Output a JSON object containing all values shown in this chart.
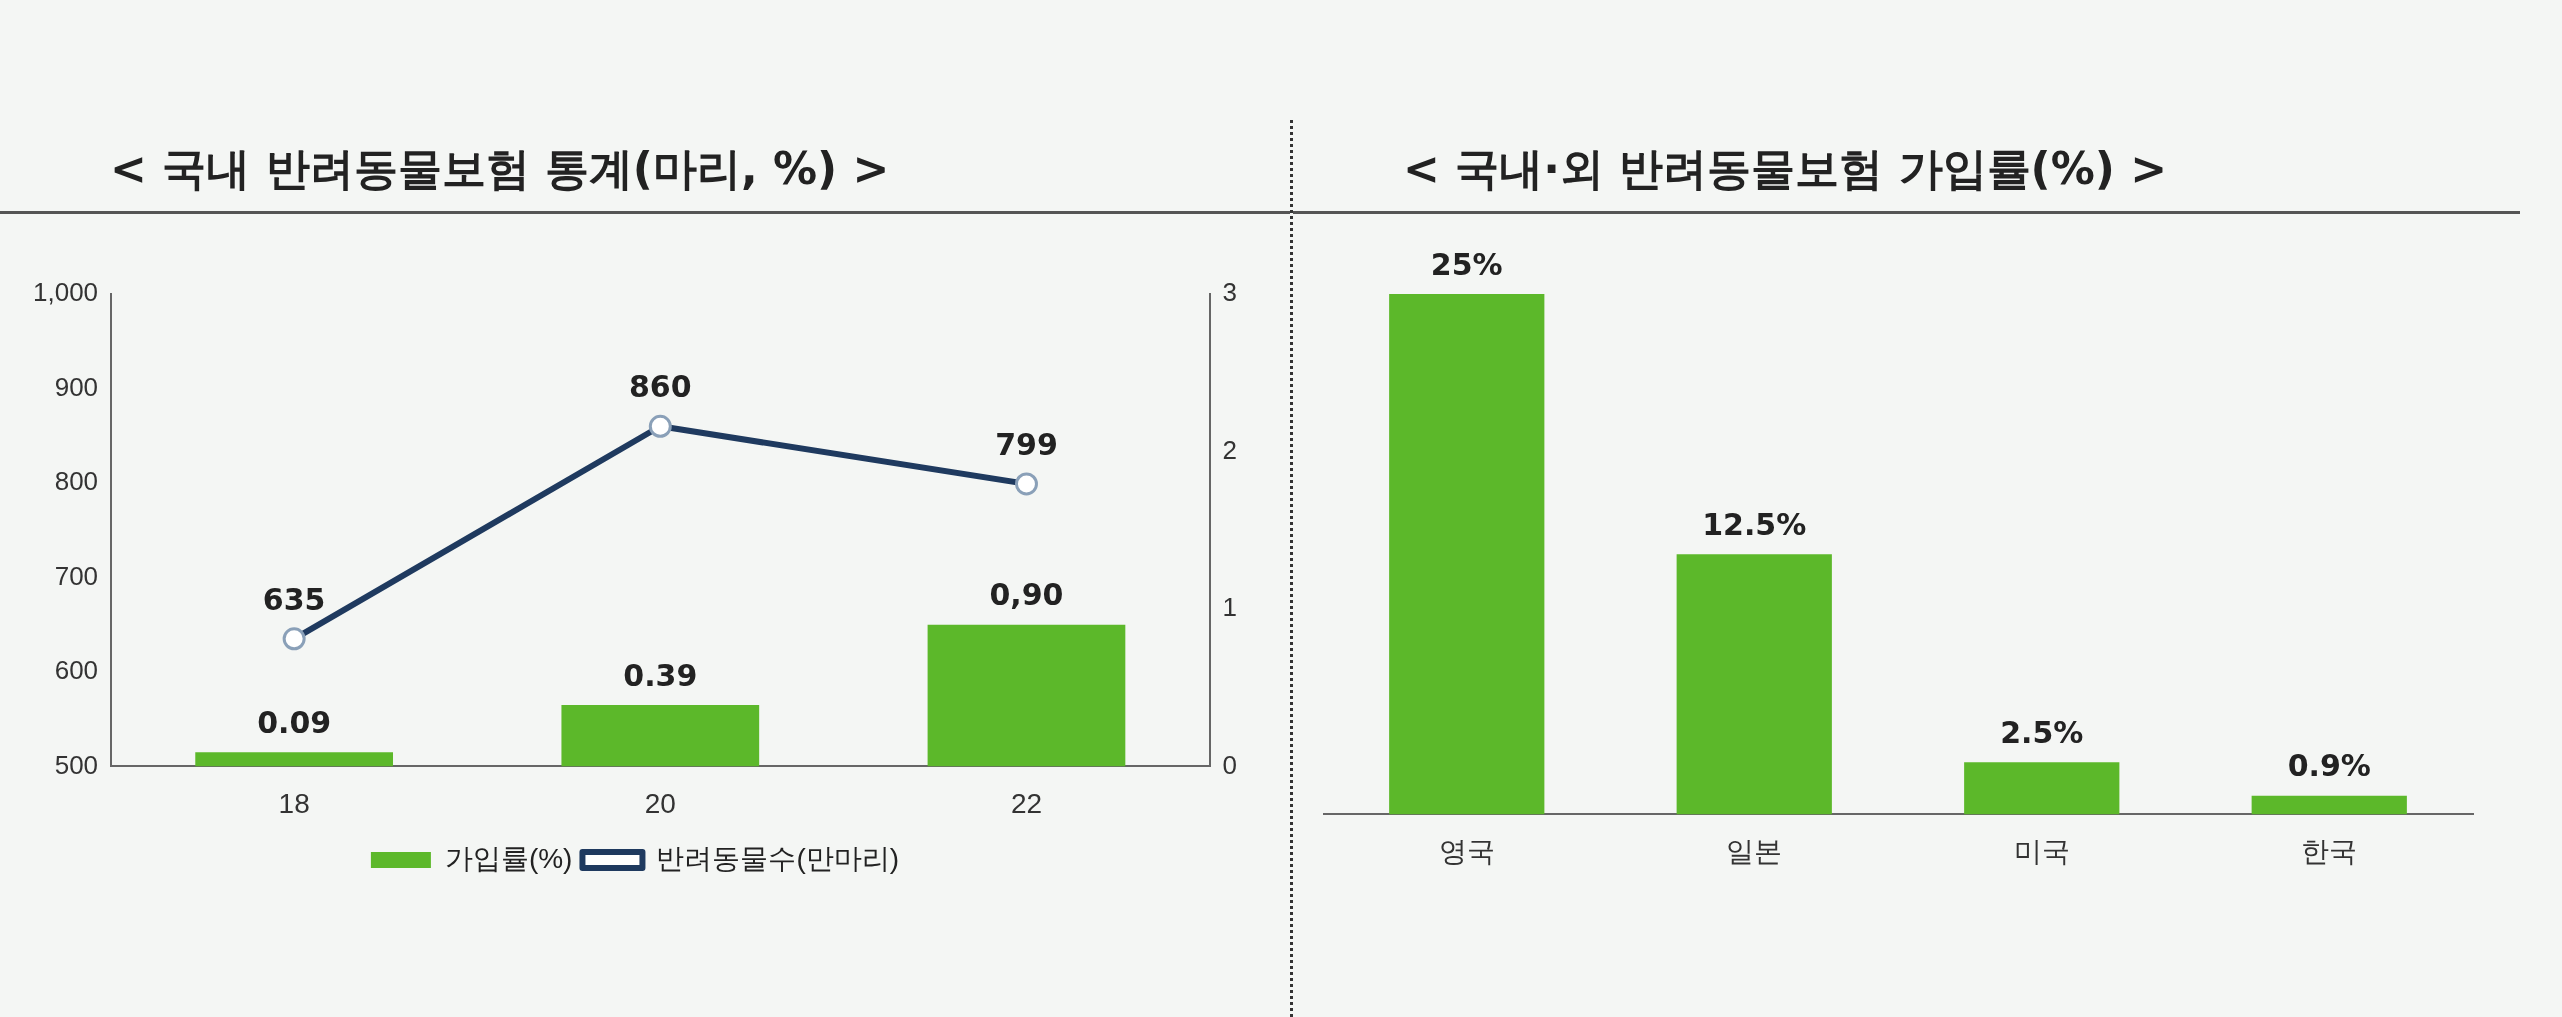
{
  "chart_data": [
    {
      "type": "bar",
      "title": "< 국내 반려동물보험 통계(마리, %) >",
      "categories": [
        "18",
        "20",
        "22"
      ],
      "series": [
        {
          "name": "가입률(%)",
          "type": "bar",
          "axis": "y2",
          "color": "#5cb82a",
          "values": [
            0.09,
            0.39,
            0.9
          ],
          "value_labels": [
            "0.09",
            "0.39",
            "0,90"
          ]
        },
        {
          "name": "반려동물수(만마리)",
          "type": "line",
          "color": "#1f3a5f",
          "values": [
            635,
            860,
            799
          ],
          "value_labels": [
            "635",
            "860",
            "799"
          ]
        }
      ],
      "ylim": [
        500,
        1000
      ],
      "yticks": [
        500,
        600,
        700,
        800,
        900,
        {
          "value": 1000,
          "label": "1,000"
        }
      ],
      "y2lim": [
        0,
        3
      ],
      "y2ticks": [
        0,
        1,
        2,
        3
      ],
      "grid": false,
      "legend": "bottom",
      "marker": "circle",
      "line_style": "solid"
    },
    {
      "type": "bar",
      "title": "< 국내·외 반려동물보험 가입률(%) >",
      "categories": [
        "영국",
        "일본",
        "미국",
        "한국"
      ],
      "values": [
        25,
        12.5,
        2.5,
        0.9
      ],
      "value_labels": [
        "25%",
        "12.5%",
        "2.5%",
        "0.9%"
      ],
      "color": "#5cb82a",
      "grid": false,
      "legend": false
    }
  ]
}
